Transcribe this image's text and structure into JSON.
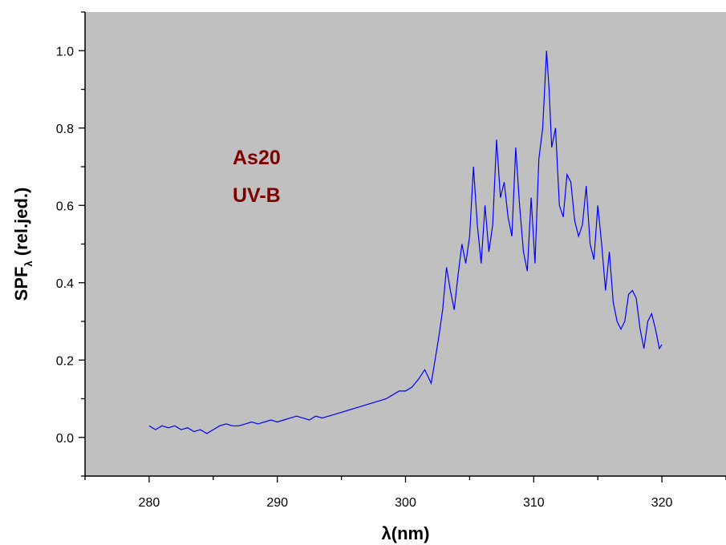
{
  "chart_data": {
    "type": "line",
    "xlabel": "λ(nm)",
    "ylabel_main": "SPF",
    "ylabel_sub": "λ",
    "ylabel_rest": " (rel.jed.)",
    "annotations": [
      "As20",
      "UV-B"
    ],
    "annotation_color": "#800000",
    "line_color": "#0000ff",
    "plot_background": "#c0c0c0",
    "xlim": [
      275,
      325
    ],
    "ylim": [
      -0.1,
      1.1
    ],
    "x_ticks": [
      280,
      290,
      300,
      310,
      320
    ],
    "x_tick_labels": [
      "280",
      "290",
      "300",
      "310",
      "320"
    ],
    "y_ticks": [
      0.0,
      0.2,
      0.4,
      0.6,
      0.8,
      1.0
    ],
    "y_tick_labels": [
      "0.0",
      "0.2",
      "0.4",
      "0.6",
      "0.8",
      "1.0"
    ],
    "series": [
      {
        "x": [
          280.0,
          280.5,
          281.0,
          281.5,
          282.0,
          282.5,
          283.0,
          283.5,
          284.0,
          284.5,
          285.0,
          285.5,
          286.0,
          286.5,
          287.0,
          287.5,
          288.0,
          288.5,
          289.0,
          289.5,
          290.0,
          290.5,
          291.0,
          291.5,
          292.0,
          292.5,
          293.0,
          293.5,
          294.0,
          294.5,
          295.0,
          295.5,
          296.0,
          296.5,
          297.0,
          297.5,
          298.0,
          298.5,
          299.0,
          299.5,
          300.0,
          300.5,
          301.0,
          301.5,
          302.0,
          302.3,
          302.6,
          302.9,
          303.2,
          303.5,
          303.8,
          304.1,
          304.4,
          304.7,
          305.0,
          305.3,
          305.6,
          305.9,
          306.2,
          306.5,
          306.8,
          307.1,
          307.4,
          307.7,
          308.0,
          308.3,
          308.6,
          308.9,
          309.2,
          309.5,
          309.8,
          310.1,
          310.4,
          310.7,
          311.0,
          311.2,
          311.4,
          311.7,
          312.0,
          312.3,
          312.6,
          312.9,
          313.2,
          313.5,
          313.8,
          314.1,
          314.4,
          314.7,
          315.0,
          315.3,
          315.6,
          315.9,
          316.2,
          316.5,
          316.8,
          317.1,
          317.4,
          317.7,
          318.0,
          318.3,
          318.6,
          318.9,
          319.2,
          319.5,
          319.8,
          320.0
        ],
        "y": [
          0.03,
          0.02,
          0.03,
          0.025,
          0.03,
          0.02,
          0.025,
          0.015,
          0.02,
          0.01,
          0.02,
          0.03,
          0.035,
          0.03,
          0.03,
          0.035,
          0.04,
          0.035,
          0.04,
          0.045,
          0.04,
          0.045,
          0.05,
          0.055,
          0.05,
          0.045,
          0.055,
          0.05,
          0.055,
          0.06,
          0.065,
          0.07,
          0.075,
          0.08,
          0.085,
          0.09,
          0.095,
          0.1,
          0.11,
          0.12,
          0.12,
          0.13,
          0.15,
          0.175,
          0.14,
          0.2,
          0.26,
          0.33,
          0.44,
          0.38,
          0.33,
          0.42,
          0.5,
          0.45,
          0.52,
          0.7,
          0.55,
          0.45,
          0.6,
          0.48,
          0.55,
          0.77,
          0.62,
          0.66,
          0.57,
          0.52,
          0.75,
          0.6,
          0.48,
          0.43,
          0.62,
          0.45,
          0.72,
          0.8,
          1.0,
          0.9,
          0.75,
          0.8,
          0.6,
          0.57,
          0.68,
          0.66,
          0.56,
          0.52,
          0.55,
          0.65,
          0.5,
          0.46,
          0.6,
          0.5,
          0.38,
          0.48,
          0.35,
          0.3,
          0.28,
          0.3,
          0.37,
          0.38,
          0.36,
          0.28,
          0.23,
          0.3,
          0.32,
          0.28,
          0.23,
          0.24
        ]
      }
    ]
  }
}
